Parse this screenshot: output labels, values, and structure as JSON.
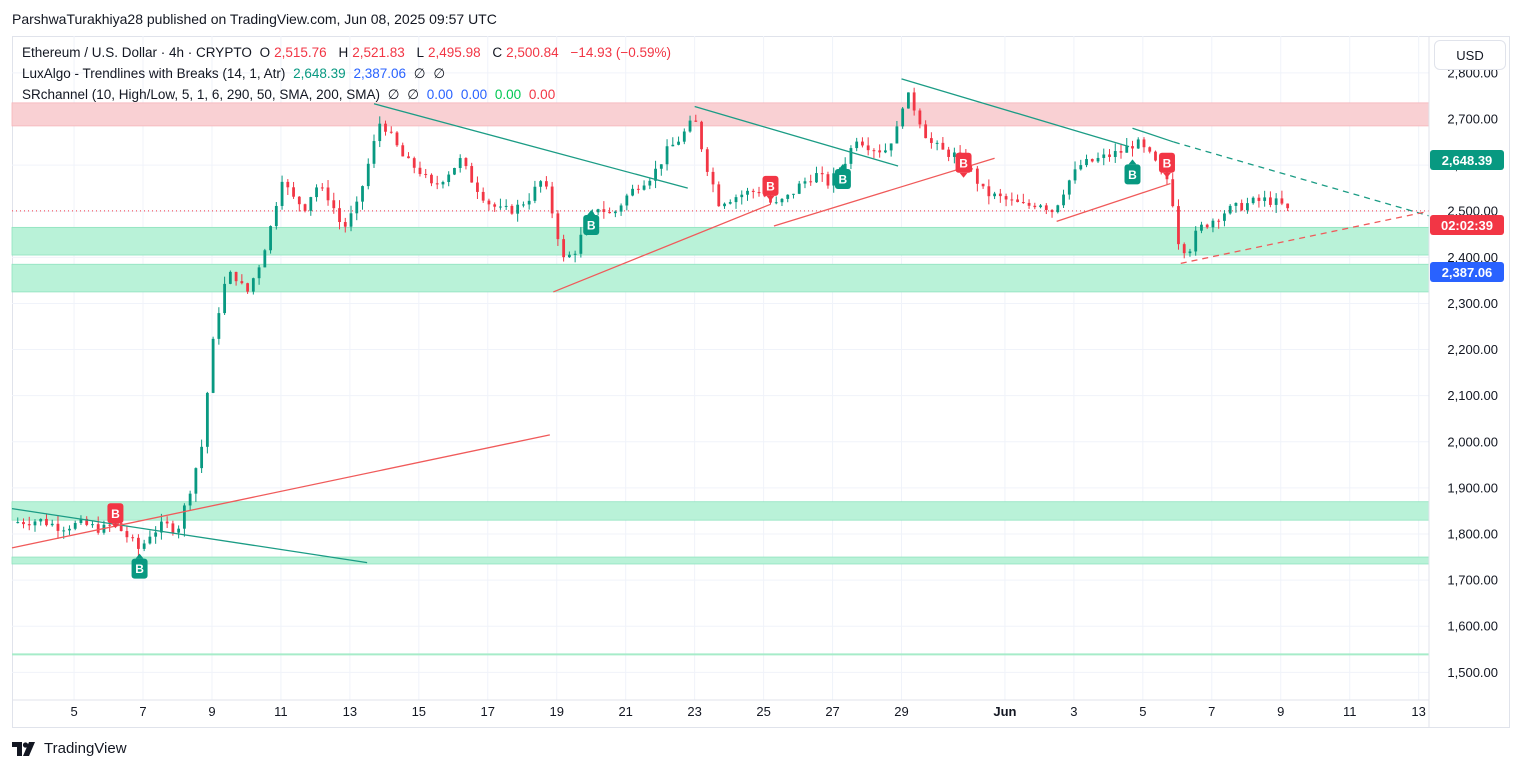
{
  "header": {
    "publisher": "ParshwaTurakhiya28 published on TradingView.com, Jun 08, 2025 09:57 UTC"
  },
  "legend": {
    "symbol": "Ethereum / U.S. Dollar · 4h · CRYPTO",
    "o_label": "O",
    "o": "2,515.76",
    "h_label": "H",
    "h": "2,521.83",
    "l_label": "L",
    "l": "2,495.98",
    "c_label": "C",
    "c": "2,500.84",
    "change": "−14.93 (−0.59%)",
    "ind1_name": "LuxAlgo - Trendlines with Breaks (14, 1, Atr)",
    "ind1_v1": "2,648.39",
    "ind1_v2": "2,387.06",
    "ind1_v3": "∅",
    "ind1_v4": "∅",
    "ind2_name": "SRchannel (10, High/Low, 5, 1, 6, 290, 50, SMA, 200, SMA)",
    "ind2_v1": "∅",
    "ind2_v2": "∅",
    "ind2_v3": "0.00",
    "ind2_v4": "0.00",
    "ind2_v5": "0.00",
    "ind2_v6": "0.00"
  },
  "currency_button": "USD",
  "price_tags": {
    "upper_trend": "2,648.39",
    "countdown": "02:02:39",
    "lower_trend": "2,387.06"
  },
  "footer": {
    "brand": "TradingView"
  },
  "colors": {
    "up": "#089981",
    "down": "#f23645",
    "resistance_zone": "#f9d0d3",
    "support_zone": "#b9f2d8",
    "trend_down": "#1b9c85",
    "trend_up": "#f05a5a",
    "blue_tag": "#2962ff"
  },
  "chart_data": {
    "type": "candlestick",
    "title": "Ethereum / U.S. Dollar · 4h · CRYPTO",
    "y_axis": {
      "ticks": [
        1500,
        1600,
        1700,
        1800,
        1900,
        2000,
        2100,
        2200,
        2300,
        2400,
        2500,
        2600,
        2700,
        2800
      ],
      "tick_labels": [
        "1,500.00",
        "1,600.00",
        "1,700.00",
        "1,800.00",
        "1,900.00",
        "2,000.00",
        "2,100.00",
        "2,200.00",
        "2,300.00",
        "2,400.00",
        "2,500.00",
        "2,600.00",
        "2,700.00",
        "2,800.00"
      ],
      "range": [
        1440,
        2880
      ]
    },
    "x_axis": {
      "range_days": [
        3.2,
        44.3
      ],
      "ticks": [
        {
          "day": 5,
          "label": "5"
        },
        {
          "day": 7,
          "label": "7"
        },
        {
          "day": 9,
          "label": "9"
        },
        {
          "day": 11,
          "label": "11"
        },
        {
          "day": 13,
          "label": "13"
        },
        {
          "day": 15,
          "label": "15"
        },
        {
          "day": 17,
          "label": "17"
        },
        {
          "day": 19,
          "label": "19"
        },
        {
          "day": 21,
          "label": "21"
        },
        {
          "day": 23,
          "label": "23"
        },
        {
          "day": 25,
          "label": "25"
        },
        {
          "day": 27,
          "label": "27"
        },
        {
          "day": 29,
          "label": "29"
        },
        {
          "day": 32,
          "label": "Jun"
        },
        {
          "day": 34,
          "label": "3"
        },
        {
          "day": 36,
          "label": "5"
        },
        {
          "day": 38,
          "label": "7"
        },
        {
          "day": 40,
          "label": "9"
        },
        {
          "day": 42,
          "label": "11"
        },
        {
          "day": 44,
          "label": "13"
        }
      ]
    },
    "close_path": [
      [
        3.2,
        1825
      ],
      [
        4.0,
        1830
      ],
      [
        4.6,
        1815
      ],
      [
        5.2,
        1822
      ],
      [
        5.8,
        1810
      ],
      [
        6.2,
        1820
      ],
      [
        6.6,
        1790
      ],
      [
        6.9,
        1765
      ],
      [
        7.2,
        1800
      ],
      [
        7.6,
        1820
      ],
      [
        8.0,
        1810
      ],
      [
        8.3,
        1880
      ],
      [
        8.7,
        1990
      ],
      [
        9.0,
        2200
      ],
      [
        9.3,
        2330
      ],
      [
        9.6,
        2370
      ],
      [
        10.0,
        2320
      ],
      [
        10.4,
        2390
      ],
      [
        10.8,
        2490
      ],
      [
        11.0,
        2580
      ],
      [
        11.3,
        2530
      ],
      [
        11.7,
        2510
      ],
      [
        12.0,
        2555
      ],
      [
        12.4,
        2530
      ],
      [
        12.8,
        2460
      ],
      [
        13.2,
        2510
      ],
      [
        13.6,
        2620
      ],
      [
        13.9,
        2700
      ],
      [
        14.2,
        2660
      ],
      [
        14.6,
        2610
      ],
      [
        15.0,
        2590
      ],
      [
        15.4,
        2550
      ],
      [
        15.8,
        2580
      ],
      [
        16.2,
        2610
      ],
      [
        16.6,
        2560
      ],
      [
        17.0,
        2520
      ],
      [
        17.4,
        2500
      ],
      [
        17.8,
        2505
      ],
      [
        18.2,
        2530
      ],
      [
        18.6,
        2570
      ],
      [
        18.9,
        2490
      ],
      [
        19.2,
        2395
      ],
      [
        19.5,
        2410
      ],
      [
        19.8,
        2460
      ],
      [
        20.2,
        2510
      ],
      [
        20.6,
        2490
      ],
      [
        21.0,
        2530
      ],
      [
        21.4,
        2560
      ],
      [
        21.8,
        2580
      ],
      [
        22.2,
        2630
      ],
      [
        22.6,
        2660
      ],
      [
        23.0,
        2700
      ],
      [
        23.3,
        2610
      ],
      [
        23.7,
        2520
      ],
      [
        24.1,
        2530
      ],
      [
        24.5,
        2540
      ],
      [
        24.9,
        2545
      ],
      [
        25.3,
        2510
      ],
      [
        25.7,
        2530
      ],
      [
        26.1,
        2560
      ],
      [
        26.5,
        2580
      ],
      [
        26.9,
        2560
      ],
      [
        27.3,
        2600
      ],
      [
        27.7,
        2660
      ],
      [
        28.1,
        2640
      ],
      [
        28.5,
        2630
      ],
      [
        28.9,
        2680
      ],
      [
        29.1,
        2760
      ],
      [
        29.4,
        2720
      ],
      [
        29.8,
        2650
      ],
      [
        30.2,
        2630
      ],
      [
        30.6,
        2620
      ],
      [
        31.0,
        2590
      ],
      [
        31.4,
        2540
      ],
      [
        31.8,
        2530
      ],
      [
        32.2,
        2520
      ],
      [
        32.6,
        2510
      ],
      [
        33.0,
        2520
      ],
      [
        33.4,
        2500
      ],
      [
        33.8,
        2560
      ],
      [
        34.2,
        2600
      ],
      [
        34.6,
        2610
      ],
      [
        35.0,
        2620
      ],
      [
        35.4,
        2630
      ],
      [
        35.8,
        2650
      ],
      [
        36.2,
        2620
      ],
      [
        36.5,
        2590
      ],
      [
        36.8,
        2560
      ],
      [
        37.0,
        2440
      ],
      [
        37.3,
        2410
      ],
      [
        37.6,
        2460
      ],
      [
        38.0,
        2480
      ],
      [
        38.4,
        2500
      ],
      [
        38.8,
        2510
      ],
      [
        39.2,
        2520
      ],
      [
        39.6,
        2525
      ],
      [
        40.0,
        2515
      ],
      [
        40.2,
        2501
      ]
    ],
    "zones": [
      {
        "kind": "resistance",
        "from": 2685,
        "to": 2735
      },
      {
        "kind": "support",
        "from": 2405,
        "to": 2465
      },
      {
        "kind": "support",
        "from": 2325,
        "to": 2385
      },
      {
        "kind": "support",
        "from": 1830,
        "to": 1870
      },
      {
        "kind": "support",
        "from": 1735,
        "to": 1750
      },
      {
        "kind": "support_line",
        "from": 1539,
        "to": 1539
      }
    ],
    "trendlines": [
      {
        "kind": "down",
        "from": [
          3.2,
          1855
        ],
        "to": [
          13.5,
          1738
        ]
      },
      {
        "kind": "up",
        "from": [
          3.2,
          1770
        ],
        "to": [
          18.8,
          2015
        ]
      },
      {
        "kind": "down",
        "from": [
          13.7,
          2733
        ],
        "to": [
          22.8,
          2550
        ]
      },
      {
        "kind": "up",
        "from": [
          18.9,
          2325
        ],
        "to": [
          25.2,
          2515
        ]
      },
      {
        "kind": "down",
        "from": [
          23.0,
          2727
        ],
        "to": [
          28.9,
          2598
        ]
      },
      {
        "kind": "up",
        "from": [
          25.3,
          2468
        ],
        "to": [
          31.7,
          2615
        ]
      },
      {
        "kind": "down",
        "from": [
          29.0,
          2787
        ],
        "to": [
          35.6,
          2640
        ]
      },
      {
        "kind": "up",
        "from": [
          33.5,
          2478
        ],
        "to": [
          36.8,
          2560
        ]
      },
      {
        "kind": "down",
        "from": [
          35.7,
          2680
        ],
        "to": [
          36.9,
          2650
        ]
      },
      {
        "kind": "down",
        "from": [
          36.9,
          2650
        ],
        "to": [
          44.3,
          2490
        ],
        "dashed": true
      },
      {
        "kind": "up",
        "from": [
          37.1,
          2387
        ],
        "to": [
          44.3,
          2500
        ],
        "dashed": true
      }
    ],
    "signals": [
      {
        "type": "sell",
        "label": "B",
        "day": 6.2,
        "price": 1845
      },
      {
        "type": "buy",
        "label": "B",
        "day": 6.9,
        "price": 1725
      },
      {
        "type": "buy",
        "label": "B",
        "day": 20.0,
        "price": 2470
      },
      {
        "type": "sell",
        "label": "B",
        "day": 25.2,
        "price": 2555
      },
      {
        "type": "buy",
        "label": "B",
        "day": 27.3,
        "price": 2570
      },
      {
        "type": "sell",
        "label": "B",
        "day": 30.8,
        "price": 2605
      },
      {
        "type": "buy",
        "label": "B",
        "day": 35.7,
        "price": 2580
      },
      {
        "type": "sell",
        "label": "B",
        "day": 36.7,
        "price": 2605
      }
    ],
    "last_price_line": 2500.84
  }
}
